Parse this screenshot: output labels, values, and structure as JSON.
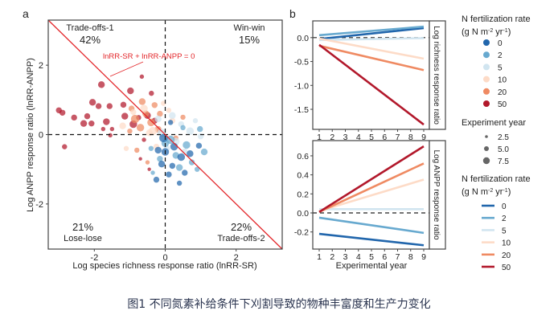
{
  "caption": "图1 不同氮素补给条件下刈割导致的物种丰富度和生产力变化",
  "colors": {
    "0": "#2166ac",
    "2": "#67a9cf",
    "5": "#d1e5f0",
    "10": "#fddbc7",
    "20": "#ef8a62",
    "50": "#b2182b"
  },
  "chart_data": [
    {
      "panel_label": "a",
      "type": "scatter",
      "xlabel": "Log species richness response ratio (lnRR-SR)",
      "ylabel": "Log ANPP response ratio (lnRR-ANPP)",
      "xlim": [
        -3.3,
        3.3
      ],
      "ylim": [
        -3.3,
        3.3
      ],
      "xticks": [
        -2,
        0,
        2
      ],
      "yticks": [
        -2,
        0,
        2
      ],
      "reference_line": {
        "label": "lnRR-SR + lnRR-ANPP = 0",
        "color": "#e3262a"
      },
      "quadrants": [
        {
          "name": "Trade-offs-1",
          "percent": "42%"
        },
        {
          "name": "Win-win",
          "percent": "15%"
        },
        {
          "name": "Lose-lose",
          "percent": "21%"
        },
        {
          "name": "Trade-offs-2",
          "percent": "22%"
        }
      ],
      "point_fields": [
        "lnRR_SR",
        "lnRR_ANPP",
        "N_rate",
        "experiment_year"
      ],
      "points": [
        [
          -0.66,
          1.67,
          50,
          3
        ],
        [
          -1.8,
          1.44,
          50,
          6
        ],
        [
          -0.98,
          1.26,
          50,
          6
        ],
        [
          -0.39,
          1.19,
          50,
          4
        ],
        [
          -2.05,
          0.93,
          50,
          6
        ],
        [
          -3.0,
          0.7,
          50,
          5
        ],
        [
          -2.9,
          0.63,
          50,
          5
        ],
        [
          -2.57,
          0.49,
          50,
          5
        ],
        [
          -2.2,
          0.53,
          50,
          5
        ],
        [
          -2.3,
          0.32,
          50,
          6
        ],
        [
          -2.08,
          0.32,
          50,
          5
        ],
        [
          -1.66,
          0.37,
          50,
          6
        ],
        [
          -1.75,
          0.16,
          50,
          3
        ],
        [
          -1.5,
          0.16,
          50,
          3
        ],
        [
          -2.84,
          -0.35,
          50,
          4
        ],
        [
          -1.55,
          -0.02,
          50,
          3
        ],
        [
          -1.88,
          0.82,
          50,
          5
        ],
        [
          -1.57,
          0.82,
          50,
          5
        ],
        [
          -1.18,
          0.86,
          50,
          5
        ],
        [
          -1.14,
          0.53,
          50,
          6
        ],
        [
          -0.75,
          0.49,
          50,
          4
        ],
        [
          -0.9,
          0.3,
          50,
          7
        ],
        [
          -0.5,
          0.55,
          50,
          6
        ],
        [
          -0.3,
          0.4,
          50,
          5
        ],
        [
          -0.6,
          -0.15,
          50,
          3
        ],
        [
          -0.45,
          -1.0,
          50,
          2
        ],
        [
          -0.7,
          -0.7,
          50,
          2
        ],
        [
          -0.95,
          0.75,
          20,
          5
        ],
        [
          -0.85,
          0.45,
          20,
          8
        ],
        [
          -0.7,
          0.2,
          20,
          7
        ],
        [
          -0.55,
          0.6,
          20,
          6
        ],
        [
          -0.4,
          0.35,
          20,
          7
        ],
        [
          -0.3,
          0.85,
          20,
          5
        ],
        [
          -0.2,
          0.15,
          20,
          6
        ],
        [
          -1.0,
          0.1,
          20,
          4
        ],
        [
          -0.8,
          -0.45,
          20,
          4
        ],
        [
          -0.5,
          -0.8,
          20,
          3
        ],
        [
          -0.15,
          0.6,
          20,
          5
        ],
        [
          0.3,
          -0.1,
          20,
          4
        ],
        [
          0.5,
          0.5,
          20,
          4
        ],
        [
          -0.65,
          0.95,
          20,
          6
        ],
        [
          -1.2,
          0.25,
          10,
          6
        ],
        [
          -1.1,
          -0.4,
          10,
          4
        ],
        [
          -0.9,
          0.65,
          10,
          5
        ],
        [
          -0.6,
          0.75,
          10,
          7
        ],
        [
          -0.35,
          0.1,
          10,
          8
        ],
        [
          -0.05,
          0.9,
          10,
          4
        ],
        [
          0.2,
          0.4,
          10,
          5
        ],
        [
          -0.25,
          -0.35,
          10,
          5
        ],
        [
          0.1,
          0.7,
          10,
          4
        ],
        [
          -0.45,
          0.05,
          10,
          6
        ],
        [
          -0.2,
          0.45,
          5,
          6
        ],
        [
          0.2,
          0.55,
          5,
          6
        ],
        [
          0.45,
          0.3,
          5,
          5
        ],
        [
          0.7,
          0.1,
          5,
          7
        ],
        [
          0.3,
          -0.2,
          5,
          7
        ],
        [
          0.05,
          -0.4,
          5,
          5
        ],
        [
          0.85,
          0.4,
          5,
          4
        ],
        [
          -0.1,
          0.05,
          5,
          8
        ],
        [
          0.55,
          -0.5,
          5,
          6
        ],
        [
          1.0,
          -0.05,
          5,
          5
        ],
        [
          0.98,
          0.16,
          2,
          5
        ],
        [
          0.6,
          -0.3,
          2,
          7
        ],
        [
          0.3,
          -0.6,
          2,
          6
        ],
        [
          0.15,
          -0.15,
          2,
          8
        ],
        [
          0.75,
          -0.8,
          2,
          5
        ],
        [
          -0.15,
          -0.7,
          2,
          5
        ],
        [
          0.5,
          0.2,
          2,
          4
        ],
        [
          1.1,
          -0.5,
          2,
          6
        ],
        [
          -0.4,
          -0.4,
          2,
          4
        ],
        [
          0.9,
          -1.0,
          2,
          4
        ],
        [
          -0.35,
          -1.1,
          2,
          3
        ],
        [
          0.0,
          -0.25,
          2,
          7
        ],
        [
          0.4,
          -0.95,
          2,
          6
        ],
        [
          0.95,
          -0.32,
          0,
          5
        ],
        [
          0.0,
          -0.5,
          0,
          7
        ],
        [
          -0.1,
          -0.85,
          0,
          6
        ],
        [
          0.2,
          -0.9,
          0,
          5
        ],
        [
          0.45,
          -0.65,
          0,
          7
        ],
        [
          0.1,
          -1.15,
          0,
          5
        ],
        [
          -0.25,
          -1.3,
          0,
          5
        ],
        [
          0.4,
          -1.4,
          0,
          4
        ],
        [
          0.15,
          0.35,
          0,
          4
        ],
        [
          -0.05,
          -0.1,
          0,
          8
        ],
        [
          0.7,
          -0.55,
          0,
          6
        ],
        [
          0.25,
          -0.35,
          0,
          7
        ],
        [
          -0.2,
          -0.45,
          0,
          6
        ],
        [
          0.55,
          -1.1,
          0,
          5
        ]
      ]
    },
    {
      "panel_label": "b",
      "type": "line",
      "strip_label": "Log richness response ratio",
      "x": [
        1,
        9
      ],
      "xticks": [
        1,
        2,
        3,
        4,
        5,
        6,
        7,
        8,
        9
      ],
      "ylim": [
        -1.92,
        0.35
      ],
      "yticks": [
        {
          "v": 0,
          "label": "0.0"
        },
        {
          "v": -0.5,
          "label": "-0.5"
        },
        {
          "v": -1.0,
          "label": "-1.0"
        },
        {
          "v": -1.5,
          "label": "-1.5"
        }
      ],
      "series": [
        {
          "name": "0",
          "values": [
            -0.03,
            0.2
          ]
        },
        {
          "name": "2",
          "values": [
            0.05,
            0.23
          ]
        },
        {
          "name": "5",
          "values": [
            -0.05,
            -0.01
          ]
        },
        {
          "name": "10",
          "values": [
            -0.02,
            -0.44
          ]
        },
        {
          "name": "20",
          "values": [
            -0.17,
            -0.68
          ]
        },
        {
          "name": "50",
          "values": [
            -0.15,
            -1.82
          ]
        }
      ]
    },
    {
      "type": "line",
      "strip_label": "Log ANPP response ratio",
      "xlabel": "Experimental year",
      "x": [
        1,
        9
      ],
      "xticks": [
        1,
        2,
        3,
        4,
        5,
        6,
        7,
        8,
        9
      ],
      "ylim": [
        -0.38,
        0.76
      ],
      "yticks": [
        {
          "v": 0.6,
          "label": "0.6"
        },
        {
          "v": 0.4,
          "label": "0.4"
        },
        {
          "v": 0.2,
          "label": "0.2"
        },
        {
          "v": 0,
          "label": "0.0"
        },
        {
          "v": -0.2,
          "label": "-0.2"
        }
      ],
      "series": [
        {
          "name": "0",
          "values": [
            -0.22,
            -0.34
          ]
        },
        {
          "name": "2",
          "values": [
            -0.05,
            -0.21
          ]
        },
        {
          "name": "5",
          "values": [
            0.04,
            0.04
          ]
        },
        {
          "name": "10",
          "values": [
            0.02,
            0.35
          ]
        },
        {
          "name": "20",
          "values": [
            0.01,
            0.52
          ]
        },
        {
          "name": "50",
          "values": [
            0.01,
            0.7
          ]
        }
      ]
    }
  ],
  "legends": {
    "point_color": {
      "title1": "N fertilization rate",
      "title2": "(g N m",
      "sup1": "-2",
      "mid": " yr",
      "sup2": "-1",
      "end": ")",
      "items": [
        "0",
        "2",
        "5",
        "10",
        "20",
        "50"
      ]
    },
    "point_size": {
      "title": "Experiment year",
      "items": [
        "2.5",
        "5.0",
        "7.5"
      ]
    },
    "line_color": {
      "title1": "N fertilization rate",
      "title2": "(g N m",
      "sup1": "-2",
      "mid": " yr",
      "sup2": "-1",
      "end": ")",
      "items": [
        "0",
        "2",
        "5",
        "10",
        "20",
        "50"
      ]
    }
  }
}
